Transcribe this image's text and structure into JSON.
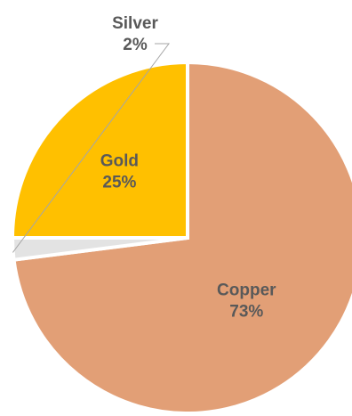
{
  "chart_data": {
    "type": "pie",
    "title": "",
    "slices": [
      {
        "label": "Copper",
        "value": 73,
        "value_label": "73%",
        "color": "#E29F76"
      },
      {
        "label": "Silver",
        "value": 2,
        "value_label": "2%",
        "color": "#E3E3E3"
      },
      {
        "label": "Gold",
        "value": 25,
        "value_label": "25%",
        "color": "#FFC000"
      }
    ],
    "start_angle": "12 o'clock",
    "direction": "clockwise",
    "data_labels": "category name and percentage",
    "legend": "none",
    "leader_line_for": "Silver"
  }
}
